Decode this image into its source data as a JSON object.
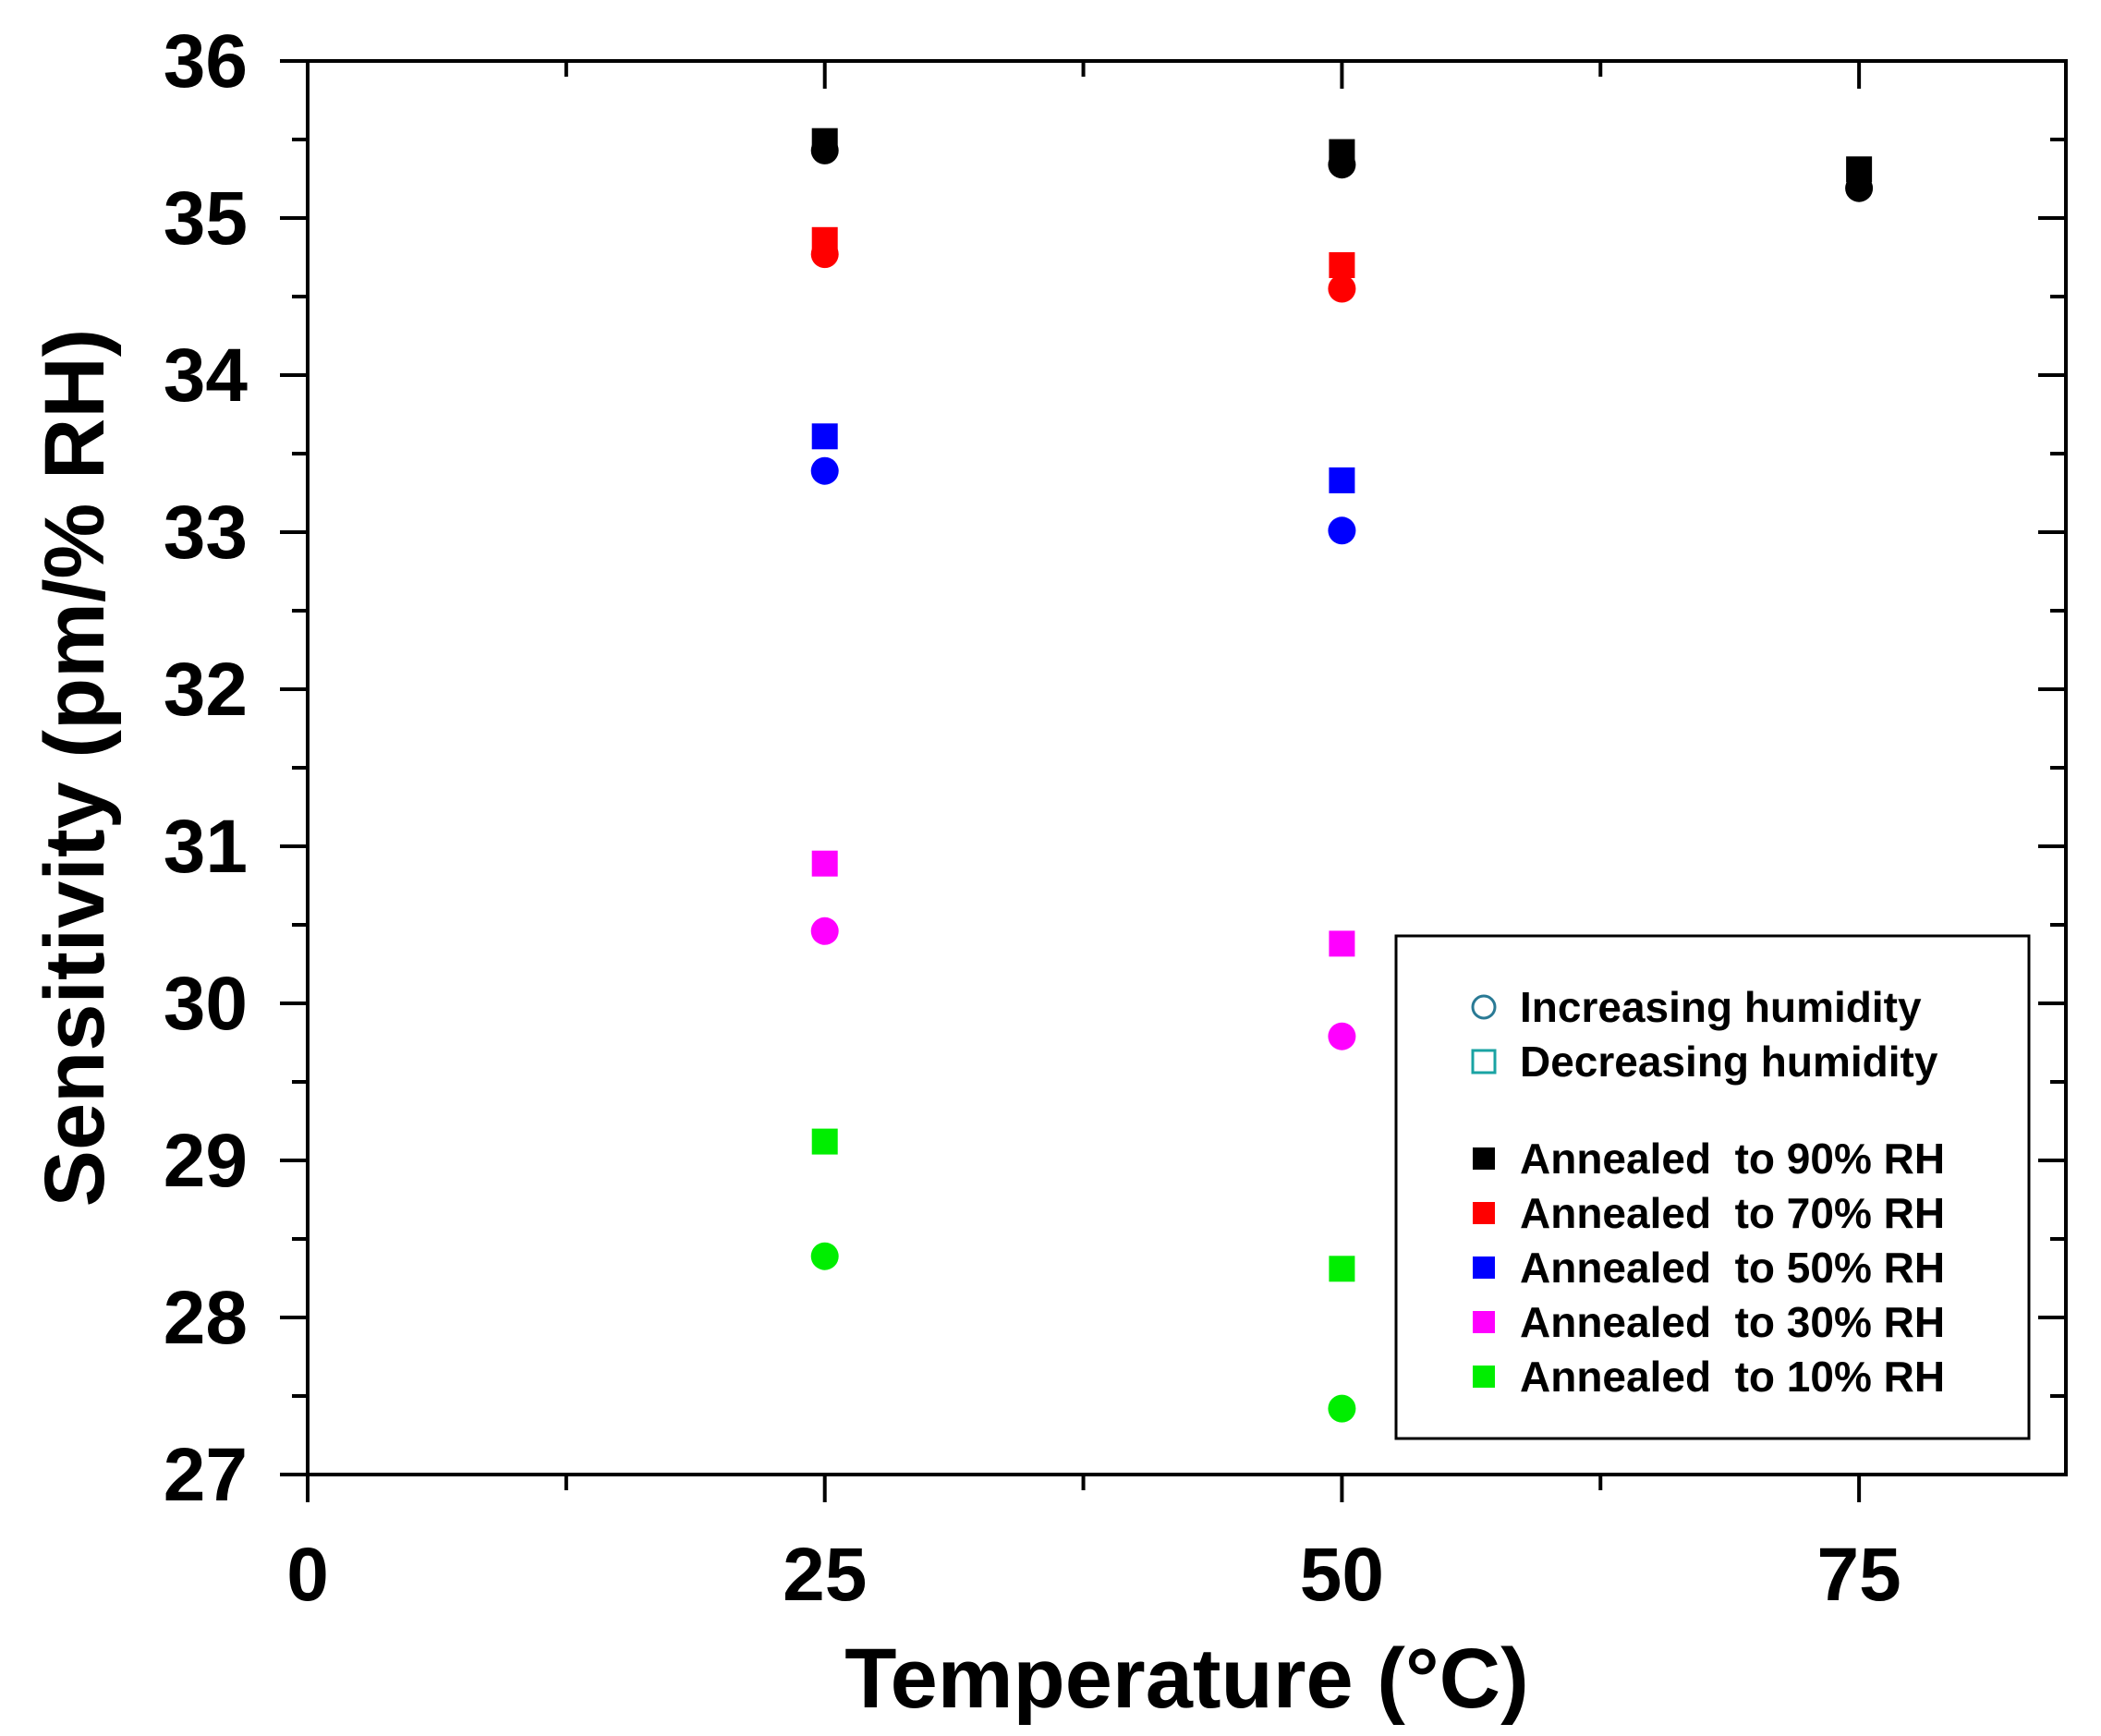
{
  "chart_data": {
    "type": "scatter",
    "xlabel": "Temperature (°C)",
    "ylabel": "Sensitivity (pm/% RH)",
    "xlim": [
      0,
      85
    ],
    "ylim": [
      27,
      36
    ],
    "x_ticks": [
      "0",
      "25",
      "50",
      "75"
    ],
    "y_ticks": [
      "27",
      "28",
      "29",
      "30",
      "31",
      "32",
      "33",
      "34",
      "35",
      "36"
    ],
    "legend_position": "bottom-right",
    "marker_legend": [
      {
        "marker": "circle",
        "label": "Increasing humidity"
      },
      {
        "marker": "square",
        "label": "Decreasing humidity"
      }
    ],
    "series": [
      {
        "name": "Annealed  to 90% RH",
        "color": "#000000",
        "increasing": [
          {
            "x": 25,
            "y": 35.43
          },
          {
            "x": 50,
            "y": 35.34
          },
          {
            "x": 75,
            "y": 35.19
          }
        ],
        "decreasing": [
          {
            "x": 25,
            "y": 35.49
          },
          {
            "x": 50,
            "y": 35.42
          },
          {
            "x": 75,
            "y": 35.31
          }
        ]
      },
      {
        "name": "Annealed  to 70% RH",
        "color": "#ff0000",
        "increasing": [
          {
            "x": 25,
            "y": 34.77
          },
          {
            "x": 50,
            "y": 34.55
          }
        ],
        "decreasing": [
          {
            "x": 25,
            "y": 34.86
          },
          {
            "x": 50,
            "y": 34.7
          }
        ]
      },
      {
        "name": "Annealed  to 50% RH",
        "color": "#0000ff",
        "increasing": [
          {
            "x": 25,
            "y": 33.39
          },
          {
            "x": 50,
            "y": 33.01
          }
        ],
        "decreasing": [
          {
            "x": 25,
            "y": 33.61
          },
          {
            "x": 50,
            "y": 33.33
          }
        ]
      },
      {
        "name": "Annealed  to 30% RH",
        "color": "#ff00ff",
        "increasing": [
          {
            "x": 25,
            "y": 30.46
          },
          {
            "x": 50,
            "y": 29.79
          }
        ],
        "decreasing": [
          {
            "x": 25,
            "y": 30.89
          },
          {
            "x": 50,
            "y": 30.38
          }
        ]
      },
      {
        "name": "Annealed  to 10% RH",
        "color": "#00ee00",
        "increasing": [
          {
            "x": 25,
            "y": 28.39
          },
          {
            "x": 50,
            "y": 27.42
          }
        ],
        "decreasing": [
          {
            "x": 25,
            "y": 29.12
          },
          {
            "x": 50,
            "y": 28.31
          }
        ]
      }
    ]
  }
}
